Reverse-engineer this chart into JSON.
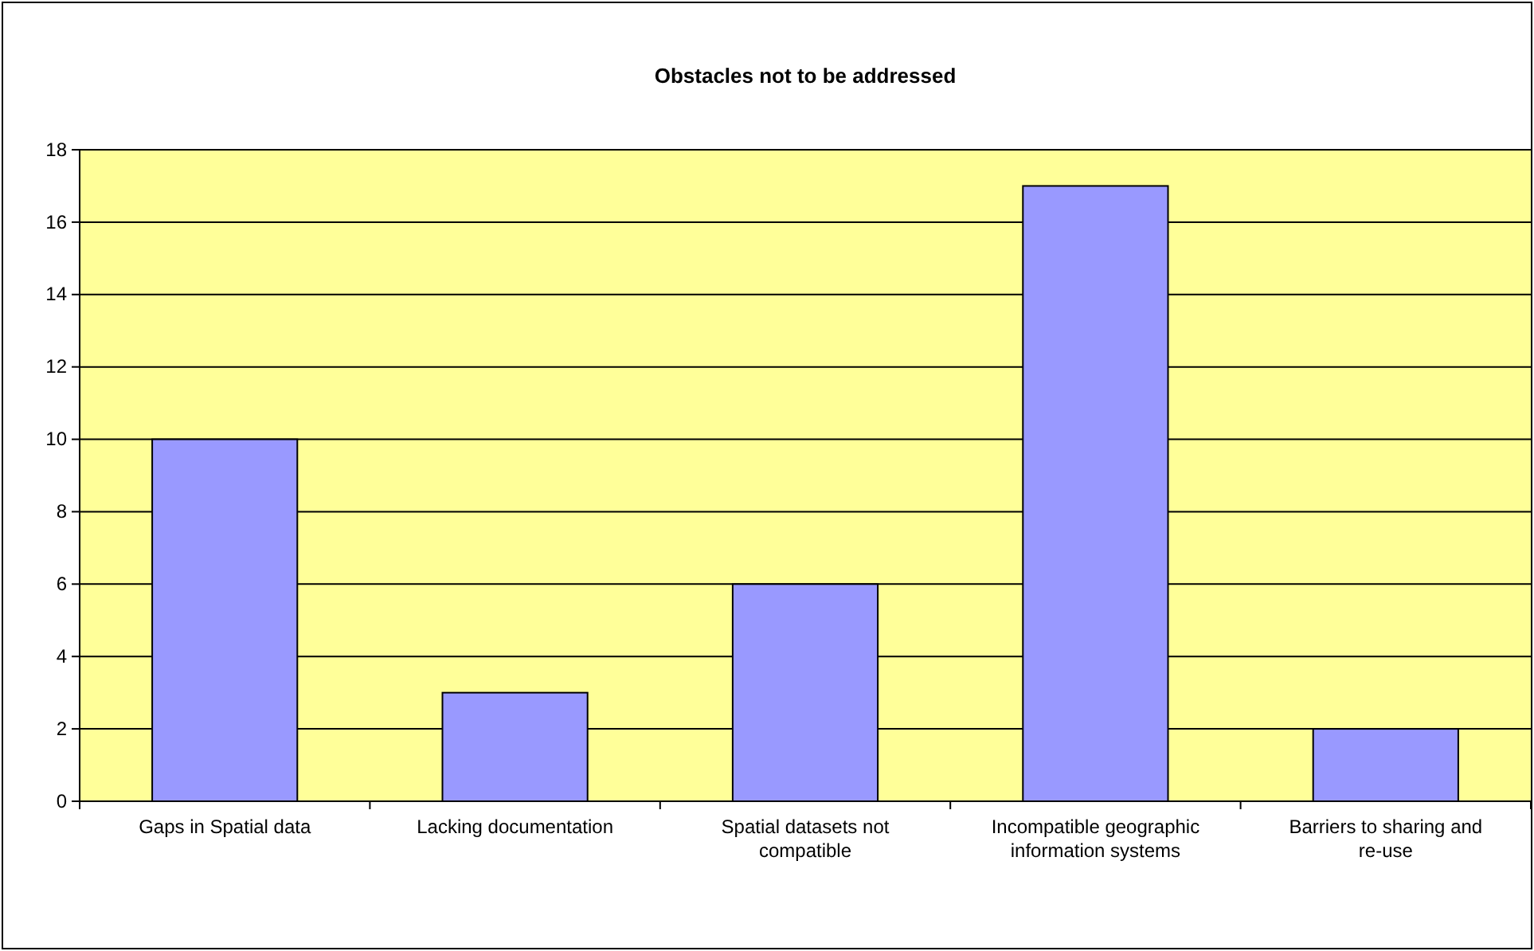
{
  "chart_data": {
    "type": "bar",
    "title": "Obstacles not to be addressed",
    "categories": [
      "Gaps in Spatial data",
      "Lacking documentation",
      "Spatial datasets not compatible",
      "Incompatible geographic information systems",
      "Barriers to sharing and re-use"
    ],
    "values": [
      10,
      3,
      6,
      17,
      2
    ],
    "color": "#9999ff",
    "ylim": [
      0,
      18
    ],
    "yticks": [
      0,
      2,
      4,
      6,
      8,
      10,
      12,
      14,
      16,
      18
    ],
    "grid": "y"
  }
}
